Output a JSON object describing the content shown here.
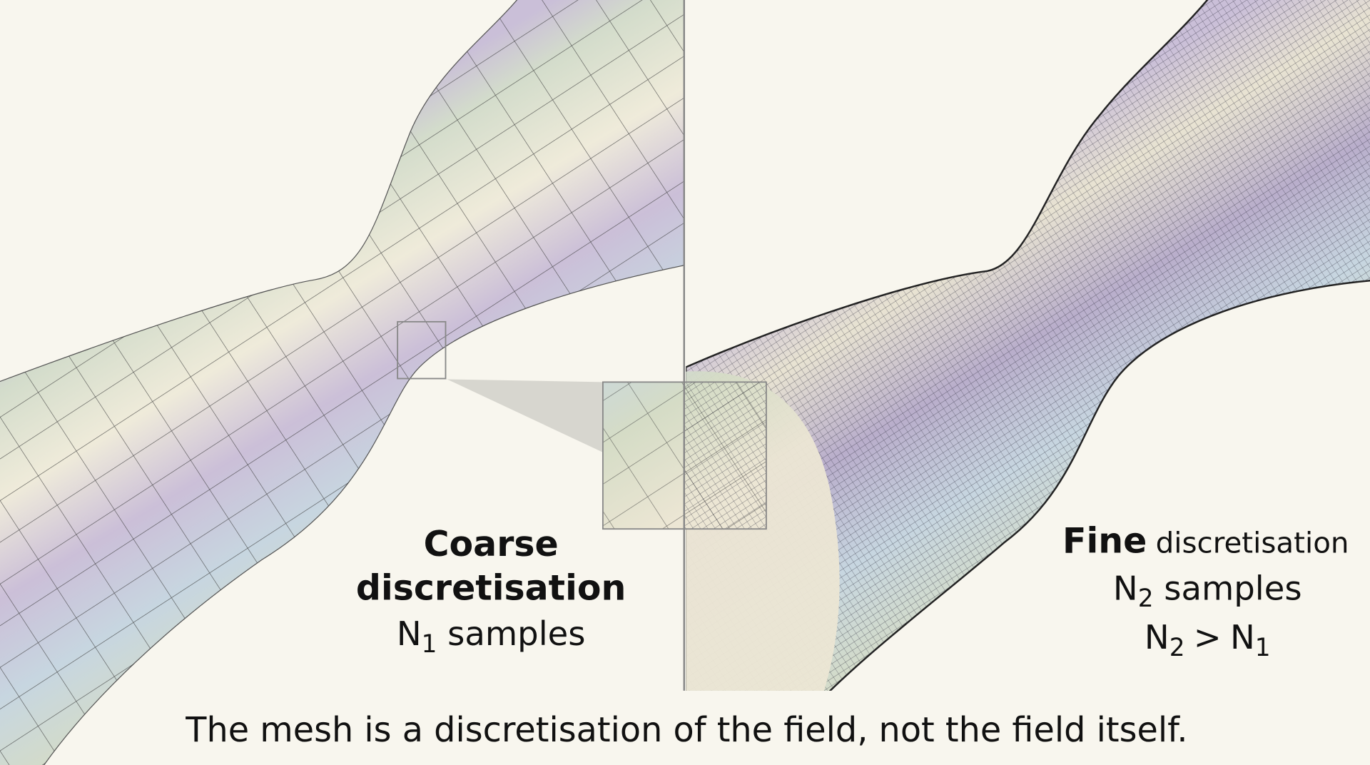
{
  "left": {
    "title_line1": "Coarse",
    "title_line2": "discretisation",
    "samples": {
      "symbol": "N",
      "subscript": "1",
      "text": "samples"
    }
  },
  "right": {
    "title_bold": "Fine",
    "title_rest": "discretisation",
    "samples": {
      "symbol": "N",
      "subscript": "2",
      "text": "samples"
    },
    "relation": {
      "lhs": "N",
      "lhs_subscript": "2",
      "operator": ">",
      "rhs": "N",
      "rhs_subscript": "1"
    }
  },
  "caption": "The mesh is a discretisation of the field, not the field itself."
}
